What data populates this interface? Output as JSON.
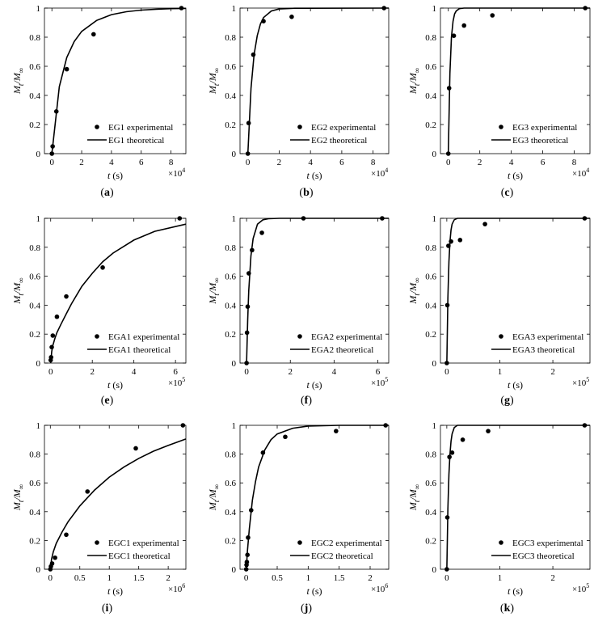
{
  "panels": [
    {
      "id": "a",
      "caption": "(a)",
      "chart_data": {
        "type": "line",
        "xlabel": "t (s)",
        "ylabel": "Mt/M∞",
        "xexp": "4",
        "xlim": [
          -0.5,
          9.0
        ],
        "ylim": [
          0,
          1
        ],
        "xticks": [
          0,
          2,
          4,
          6,
          8
        ],
        "xtick_labels": [
          "0",
          "2",
          "4",
          "6",
          "8"
        ],
        "yticks": [
          0,
          0.2,
          0.4,
          0.6,
          0.8,
          1
        ],
        "ytick_labels": [
          "0",
          "0.2",
          "0.4",
          "0.6",
          "0.8",
          "1"
        ],
        "series": [
          {
            "name": "EG1 experimental",
            "kind": "scatter",
            "x": [
              0,
              0.05,
              0.3,
              1.0,
              2.8,
              8.7
            ],
            "y": [
              0,
              0.05,
              0.29,
              0.58,
              0.82,
              1.0
            ]
          },
          {
            "name": "EG1 theoretical",
            "kind": "line",
            "x": [
              0,
              0.5,
              1.0,
              1.5,
              2.0,
              3.0,
              4.0,
              5.0,
              6.0,
              7.0,
              8.0,
              9.0
            ],
            "y": [
              0,
              0.46,
              0.66,
              0.77,
              0.84,
              0.915,
              0.955,
              0.975,
              0.986,
              0.992,
              0.996,
              0.998
            ]
          }
        ]
      }
    },
    {
      "id": "e",
      "caption": "(e)",
      "chart_data": {
        "type": "line",
        "xlabel": "t (s)",
        "ylabel": "Mt/M∞",
        "xexp": "5",
        "xlim": [
          -0.3,
          6.5
        ],
        "ylim": [
          0,
          1
        ],
        "xticks": [
          0,
          2,
          4,
          6
        ],
        "xtick_labels": [
          "0",
          "2",
          "4",
          "6"
        ],
        "yticks": [
          0,
          0.2,
          0.4,
          0.6,
          0.8,
          1
        ],
        "ytick_labels": [
          "0",
          "0.2",
          "0.4",
          "0.6",
          "0.8",
          "1"
        ],
        "series": [
          {
            "name": "EGA1 experimental",
            "kind": "scatter",
            "x": [
              0,
              0.02,
              0.05,
              0.1,
              0.3,
              0.75,
              2.5,
              6.2
            ],
            "y": [
              0.02,
              0.04,
              0.11,
              0.19,
              0.32,
              0.46,
              0.66,
              1.0
            ]
          },
          {
            "name": "EGA1 theoretical",
            "kind": "line",
            "x": [
              0,
              0.05,
              0.1,
              0.2,
              0.3,
              0.5,
              0.75,
              1.0,
              1.5,
              2.0,
              2.5,
              3.0,
              4.0,
              5.0,
              6.5
            ],
            "y": [
              0,
              0.08,
              0.12,
              0.17,
              0.21,
              0.27,
              0.34,
              0.41,
              0.53,
              0.62,
              0.7,
              0.76,
              0.85,
              0.91,
              0.96
            ]
          }
        ]
      }
    },
    {
      "id": "i",
      "caption": "(i)",
      "chart_data": {
        "type": "line",
        "xlabel": "t (s)",
        "ylabel": "Mt/M∞",
        "xexp": "6",
        "xlim": [
          -0.1,
          2.3
        ],
        "ylim": [
          0,
          1
        ],
        "xticks": [
          0,
          0.5,
          1,
          1.5,
          2
        ],
        "xtick_labels": [
          "0",
          "0.5",
          "1",
          "1.5",
          "2"
        ],
        "yticks": [
          0,
          0.2,
          0.4,
          0.6,
          0.8,
          1
        ],
        "ytick_labels": [
          "0",
          "0.2",
          "0.4",
          "0.6",
          "0.8",
          "1"
        ],
        "series": [
          {
            "name": "EGC1 experimental",
            "kind": "scatter",
            "x": [
              0,
              0.01,
              0.03,
              0.08,
              0.27,
              0.63,
              1.45,
              2.25
            ],
            "y": [
              0.0,
              0.02,
              0.04,
              0.08,
              0.24,
              0.54,
              0.84,
              1.0
            ]
          },
          {
            "name": "EGC1 theoretical",
            "kind": "line",
            "x": [
              0,
              0.02,
              0.05,
              0.1,
              0.2,
              0.3,
              0.5,
              0.75,
              1.0,
              1.25,
              1.5,
              1.75,
              2.0,
              2.3
            ],
            "y": [
              0,
              0.07,
              0.12,
              0.18,
              0.26,
              0.33,
              0.44,
              0.55,
              0.64,
              0.71,
              0.77,
              0.82,
              0.86,
              0.905
            ]
          }
        ]
      }
    },
    {
      "id": "b",
      "caption": "(b)",
      "chart_data": {
        "type": "line",
        "xlabel": "t (s)",
        "ylabel": "Mt/M∞",
        "xexp": "4",
        "xlim": [
          -0.5,
          9.0
        ],
        "ylim": [
          0,
          1
        ],
        "xticks": [
          0,
          2,
          4,
          6,
          8
        ],
        "xtick_labels": [
          "0",
          "2",
          "4",
          "6",
          "8"
        ],
        "yticks": [
          0,
          0.2,
          0.4,
          0.6,
          0.8,
          1
        ],
        "ytick_labels": [
          "0",
          "0.2",
          "0.4",
          "0.6",
          "0.8",
          "1"
        ],
        "series": [
          {
            "name": "EG2 experimental",
            "kind": "scatter",
            "x": [
              0,
              0.05,
              0.35,
              1.0,
              2.8,
              8.7
            ],
            "y": [
              0,
              0.21,
              0.68,
              0.91,
              0.94,
              1.0
            ]
          },
          {
            "name": "EG2 theoretical",
            "kind": "line",
            "x": [
              0,
              0.2,
              0.4,
              0.6,
              0.8,
              1.0,
              1.5,
              2.0,
              3.0,
              9.0
            ],
            "y": [
              0,
              0.45,
              0.68,
              0.81,
              0.89,
              0.935,
              0.98,
              0.994,
              0.999,
              1.0
            ]
          }
        ]
      }
    },
    {
      "id": "f",
      "caption": "(f)",
      "chart_data": {
        "type": "line",
        "xlabel": "t (s)",
        "ylabel": "Mt/M∞",
        "xexp": "5",
        "xlim": [
          -0.3,
          6.5
        ],
        "ylim": [
          0,
          1
        ],
        "xticks": [
          0,
          2,
          4,
          6
        ],
        "xtick_labels": [
          "0",
          "2",
          "4",
          "6"
        ],
        "yticks": [
          0,
          0.2,
          0.4,
          0.6,
          0.8,
          1
        ],
        "ytick_labels": [
          "0",
          "0.2",
          "0.4",
          "0.6",
          "0.8",
          "1"
        ],
        "series": [
          {
            "name": "EGA2 experimental",
            "kind": "scatter",
            "x": [
              0,
              0.02,
              0.05,
              0.1,
              0.25,
              0.7,
              2.6,
              6.2
            ],
            "y": [
              0,
              0.21,
              0.39,
              0.62,
              0.78,
              0.9,
              1.0,
              1.0
            ]
          },
          {
            "name": "EGA2 theoretical",
            "kind": "line",
            "x": [
              0,
              0.05,
              0.1,
              0.2,
              0.3,
              0.5,
              0.75,
              1.0,
              1.5,
              2.0,
              6.5
            ],
            "y": [
              0,
              0.3,
              0.5,
              0.74,
              0.86,
              0.96,
              0.99,
              0.997,
              1.0,
              1.0,
              1.0
            ]
          }
        ]
      }
    },
    {
      "id": "j",
      "caption": "(j)",
      "chart_data": {
        "type": "line",
        "xlabel": "t (s)",
        "ylabel": "Mt/M∞",
        "xexp": "6",
        "xlim": [
          -0.1,
          2.3
        ],
        "ylim": [
          0,
          1
        ],
        "xticks": [
          0,
          0.5,
          1,
          1.5,
          2
        ],
        "xtick_labels": [
          "0",
          "0.5",
          "1",
          "1.5",
          "2"
        ],
        "yticks": [
          0,
          0.2,
          0.4,
          0.6,
          0.8,
          1
        ],
        "ytick_labels": [
          "0",
          "0.2",
          "0.4",
          "0.6",
          "0.8",
          "1"
        ],
        "series": [
          {
            "name": "EGC2 experimental",
            "kind": "scatter",
            "x": [
              0,
              0.005,
              0.01,
              0.02,
              0.03,
              0.08,
              0.27,
              0.63,
              1.45,
              2.25
            ],
            "y": [
              0,
              0.03,
              0.05,
              0.1,
              0.22,
              0.41,
              0.81,
              0.92,
              0.96,
              1.0
            ]
          },
          {
            "name": "EGC2 theoretical",
            "kind": "line",
            "x": [
              0,
              0.02,
              0.05,
              0.1,
              0.15,
              0.2,
              0.3,
              0.4,
              0.5,
              0.75,
              1.0,
              1.5,
              2.3
            ],
            "y": [
              0,
              0.13,
              0.28,
              0.48,
              0.61,
              0.71,
              0.83,
              0.9,
              0.94,
              0.98,
              0.995,
              1.0,
              1.0
            ]
          }
        ]
      }
    },
    {
      "id": "c",
      "caption": "(c)",
      "chart_data": {
        "type": "line",
        "xlabel": "t (s)",
        "ylabel": "Mt/M∞",
        "xexp": "4",
        "xlim": [
          -0.5,
          9.0
        ],
        "ylim": [
          0,
          1
        ],
        "xticks": [
          0,
          2,
          4,
          6,
          8
        ],
        "xtick_labels": [
          "0",
          "2",
          "4",
          "6",
          "8"
        ],
        "yticks": [
          0,
          0.2,
          0.4,
          0.6,
          0.8,
          1
        ],
        "ytick_labels": [
          "0",
          "0.2",
          "0.4",
          "0.6",
          "0.8",
          "1"
        ],
        "series": [
          {
            "name": "EG3 experimental",
            "kind": "scatter",
            "x": [
              0,
              0.05,
              0.35,
              1.0,
              2.8,
              8.7
            ],
            "y": [
              0,
              0.45,
              0.81,
              0.88,
              0.95,
              1.0
            ]
          },
          {
            "name": "EG3 theoretical",
            "kind": "line",
            "x": [
              0,
              0.1,
              0.2,
              0.3,
              0.4,
              0.5,
              0.7,
              1.0,
              1.5,
              9.0
            ],
            "y": [
              0,
              0.55,
              0.8,
              0.91,
              0.96,
              0.98,
              0.996,
              1.0,
              1.0,
              1.0
            ]
          }
        ]
      }
    },
    {
      "id": "g",
      "caption": "(g)",
      "chart_data": {
        "type": "line",
        "xlabel": "t (s)",
        "ylabel": "Mt/M∞",
        "xexp": "5",
        "xlim": [
          -0.12,
          2.7
        ],
        "ylim": [
          0,
          1
        ],
        "xticks": [
          0,
          1,
          2
        ],
        "xtick_labels": [
          "0",
          "1",
          "2"
        ],
        "yticks": [
          0,
          0.2,
          0.4,
          0.6,
          0.8,
          1
        ],
        "ytick_labels": [
          "0",
          "0.2",
          "0.4",
          "0.6",
          "0.8",
          "1"
        ],
        "series": [
          {
            "name": "EGA3 experimental",
            "kind": "scatter",
            "x": [
              0,
              0.01,
              0.03,
              0.08,
              0.25,
              0.72,
              2.6
            ],
            "y": [
              0,
              0.4,
              0.81,
              0.84,
              0.85,
              0.96,
              1.0
            ]
          },
          {
            "name": "EGA3 theoretical",
            "kind": "line",
            "x": [
              0,
              0.02,
              0.04,
              0.06,
              0.08,
              0.1,
              0.14,
              0.2,
              0.3,
              2.7
            ],
            "y": [
              0,
              0.45,
              0.7,
              0.84,
              0.92,
              0.96,
              0.99,
              1.0,
              1.0,
              1.0
            ]
          }
        ]
      }
    },
    {
      "id": "k",
      "caption": "(k)",
      "chart_data": {
        "type": "line",
        "xlabel": "t (s)",
        "ylabel": "Mt/M∞",
        "xexp": "5",
        "xlim": [
          -0.12,
          2.7
        ],
        "ylim": [
          0,
          1
        ],
        "xticks": [
          0,
          1,
          2
        ],
        "xtick_labels": [
          "0",
          "1",
          "2"
        ],
        "yticks": [
          0,
          0.2,
          0.4,
          0.6,
          0.8,
          1
        ],
        "ytick_labels": [
          "0",
          "0.2",
          "0.4",
          "0.6",
          "0.8",
          "1"
        ],
        "series": [
          {
            "name": "EGC3 experimental",
            "kind": "scatter",
            "x": [
              0,
              0.01,
              0.05,
              0.1,
              0.3,
              0.78,
              2.6
            ],
            "y": [
              0,
              0.36,
              0.78,
              0.81,
              0.9,
              0.96,
              1.0
            ]
          },
          {
            "name": "EGC3 theoretical",
            "kind": "line",
            "x": [
              0,
              0.02,
              0.04,
              0.06,
              0.08,
              0.1,
              0.14,
              0.2,
              0.3,
              2.7
            ],
            "y": [
              0,
              0.42,
              0.66,
              0.8,
              0.89,
              0.94,
              0.985,
              1.0,
              1.0,
              1.0
            ]
          }
        ]
      }
    }
  ]
}
